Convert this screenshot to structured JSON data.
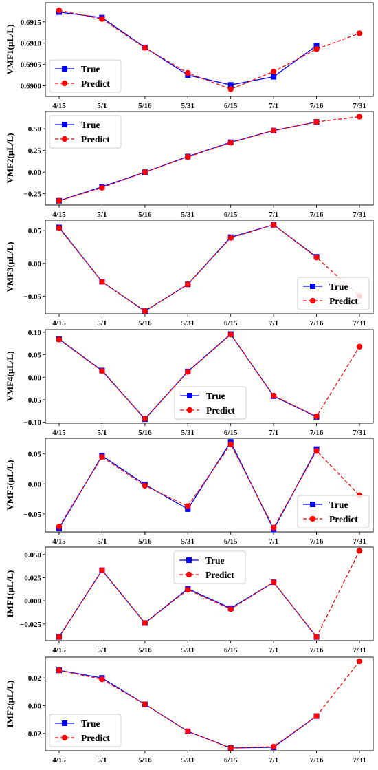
{
  "chart_data": [
    {
      "type": "line",
      "categories": [
        "4/15",
        "5/1",
        "5/16",
        "5/31",
        "6/15",
        "7/1",
        "7/16",
        "7/31"
      ],
      "ylabel": "VMF1(μL/L)",
      "ylim": [
        0.68975,
        0.69195
      ],
      "yticks": [
        0.69,
        0.6905,
        0.691,
        0.6915
      ],
      "ytick_labels": [
        "0.6900",
        "0.6905",
        "0.6910",
        "0.6915"
      ],
      "legend_position": "lower-left",
      "series": [
        {
          "name": "True",
          "color": "#0000ff",
          "line_style": "solid",
          "marker": "square",
          "values": [
            0.69173,
            0.6916,
            0.6909,
            0.69025,
            0.69002,
            0.69021,
            0.69094,
            null
          ]
        },
        {
          "name": "Predict",
          "color": "#ff0000",
          "line_style": "dashed",
          "marker": "circle",
          "values": [
            0.69177,
            0.69157,
            0.69089,
            0.6903,
            0.68992,
            0.69033,
            0.69086,
            0.69123
          ]
        }
      ]
    },
    {
      "type": "line",
      "categories": [
        "4/15",
        "5/1",
        "5/16",
        "5/31",
        "6/15",
        "7/1",
        "7/16",
        "7/31"
      ],
      "ylabel": "VMF2(μL/L)",
      "ylim": [
        -0.38,
        0.7
      ],
      "yticks": [
        -0.25,
        0,
        0.25,
        0.5
      ],
      "ytick_labels": [
        "−0.25",
        "0.00",
        "0.25",
        "0.50"
      ],
      "legend_position": "upper-left",
      "series": [
        {
          "name": "True",
          "color": "#0000ff",
          "line_style": "solid",
          "marker": "square",
          "values": [
            -0.33,
            -0.17,
            0.0,
            0.18,
            0.345,
            0.48,
            0.58,
            null
          ]
        },
        {
          "name": "Predict",
          "color": "#ff0000",
          "line_style": "dashed",
          "marker": "circle",
          "values": [
            -0.33,
            -0.18,
            0.0,
            0.175,
            0.34,
            0.48,
            0.58,
            0.64
          ]
        }
      ]
    },
    {
      "type": "line",
      "categories": [
        "4/15",
        "5/1",
        "5/16",
        "5/31",
        "6/15",
        "7/1",
        "7/16",
        "7/31"
      ],
      "ylabel": "VMF3(μL/L)",
      "ylim": [
        -0.077,
        0.066
      ],
      "yticks": [
        -0.05,
        0,
        0.05
      ],
      "ytick_labels": [
        "−0.05",
        "0.00",
        "0.05"
      ],
      "legend_position": "lower-right",
      "series": [
        {
          "name": "True",
          "color": "#0000ff",
          "line_style": "solid",
          "marker": "square",
          "values": [
            0.055,
            -0.028,
            -0.073,
            -0.032,
            0.04,
            0.059,
            0.01,
            null
          ]
        },
        {
          "name": "Predict",
          "color": "#ff0000",
          "line_style": "dashed",
          "marker": "circle",
          "values": [
            0.054,
            -0.028,
            -0.073,
            -0.032,
            0.039,
            0.059,
            0.009,
            -0.05
          ]
        }
      ]
    },
    {
      "type": "line",
      "categories": [
        "4/15",
        "5/1",
        "5/16",
        "5/31",
        "6/15",
        "7/1",
        "7/16",
        "7/31"
      ],
      "ylabel": "VMF4(μL/L)",
      "ylim": [
        -0.102,
        0.106
      ],
      "yticks": [
        -0.1,
        -0.05,
        0,
        0.05,
        0.1
      ],
      "ytick_labels": [
        "−0.10",
        "−0.05",
        "0.00",
        "0.05",
        "0.10"
      ],
      "legend_position": "lower-center",
      "series": [
        {
          "name": "True",
          "color": "#0000ff",
          "line_style": "solid",
          "marker": "square",
          "values": [
            0.085,
            0.015,
            -0.093,
            0.013,
            0.096,
            -0.042,
            -0.088,
            null
          ]
        },
        {
          "name": "Predict",
          "color": "#ff0000",
          "line_style": "dashed",
          "marker": "circle",
          "values": [
            0.084,
            0.014,
            -0.092,
            0.012,
            0.095,
            -0.041,
            -0.087,
            0.068
          ]
        }
      ]
    },
    {
      "type": "line",
      "categories": [
        "4/15",
        "5/1",
        "5/16",
        "5/31",
        "6/15",
        "7/1",
        "7/16",
        "7/31"
      ],
      "ylabel": "VMF5(μL/L)",
      "ylim": [
        -0.08,
        0.076
      ],
      "yticks": [
        -0.05,
        0,
        0.05
      ],
      "ytick_labels": [
        "−0.05",
        "0.00",
        "0.05"
      ],
      "legend_position": "lower-right",
      "series": [
        {
          "name": "True",
          "color": "#0000ff",
          "line_style": "solid",
          "marker": "square",
          "values": [
            -0.074,
            0.047,
            -0.001,
            -0.042,
            0.07,
            -0.076,
            0.058,
            null
          ]
        },
        {
          "name": "Predict",
          "color": "#ff0000",
          "line_style": "dashed",
          "marker": "circle",
          "values": [
            -0.071,
            0.045,
            -0.003,
            -0.037,
            0.066,
            -0.073,
            0.055,
            -0.019
          ]
        }
      ]
    },
    {
      "type": "line",
      "categories": [
        "4/15",
        "5/1",
        "5/16",
        "5/31",
        "6/15",
        "7/1",
        "7/16",
        "7/31"
      ],
      "ylabel": "IMF1(μL/L)",
      "ylim": [
        -0.043,
        0.058
      ],
      "yticks": [
        -0.025,
        0,
        0.025,
        0.05
      ],
      "ytick_labels": [
        "−0.025",
        "0.000",
        "0.025",
        "0.050"
      ],
      "legend_position": "upper-center",
      "series": [
        {
          "name": "True",
          "color": "#0000ff",
          "line_style": "solid",
          "marker": "square",
          "values": [
            -0.039,
            0.033,
            -0.024,
            0.013,
            -0.008,
            0.02,
            -0.039,
            null
          ]
        },
        {
          "name": "Predict",
          "color": "#ff0000",
          "line_style": "dashed",
          "marker": "circle",
          "values": [
            -0.039,
            0.033,
            -0.024,
            0.012,
            -0.009,
            0.02,
            -0.039,
            0.054
          ]
        }
      ]
    },
    {
      "type": "line",
      "categories": [
        "4/15",
        "5/1",
        "5/16",
        "5/31",
        "6/15",
        "7/1",
        "7/16",
        "7/31"
      ],
      "ylabel": "IMF2(μL/L)",
      "ylim": [
        -0.0325,
        0.035
      ],
      "yticks": [
        -0.02,
        0,
        0.02
      ],
      "ytick_labels": [
        "−0.02",
        "0.00",
        "0.02"
      ],
      "legend_position": "lower-left",
      "series": [
        {
          "name": "True",
          "color": "#0000ff",
          "line_style": "solid",
          "marker": "square",
          "values": [
            0.0255,
            0.02,
            0.001,
            -0.0185,
            -0.0305,
            -0.03,
            -0.0075,
            null
          ]
        },
        {
          "name": "Predict",
          "color": "#ff0000",
          "line_style": "dashed",
          "marker": "circle",
          "values": [
            0.0255,
            0.019,
            0.001,
            -0.0185,
            -0.0305,
            -0.0295,
            -0.0075,
            0.032
          ]
        }
      ]
    }
  ]
}
